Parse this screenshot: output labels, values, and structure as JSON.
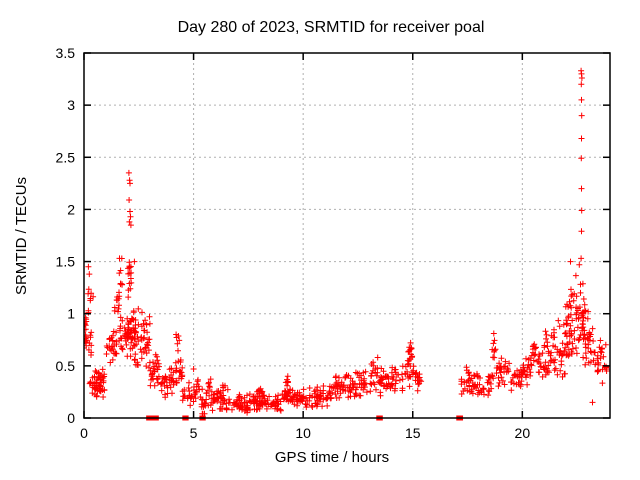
{
  "window": {
    "background": "#ffffff",
    "text_color": "#000000"
  },
  "chart_data": {
    "type": "scatter",
    "title": "Day 280 of 2023, SRMTID for receiver poal",
    "xlabel": "GPS time / hours",
    "ylabel": "SRMTID / TECUs",
    "xlim": [
      0,
      24
    ],
    "ylim": [
      0,
      3.5
    ],
    "xticks": [
      0,
      5,
      10,
      15,
      20
    ],
    "yticks": [
      0,
      0.5,
      1,
      1.5,
      2,
      2.5,
      3,
      3.5
    ],
    "grid": true,
    "grid_style": "dotted",
    "grid_color": "#b0b0b0",
    "axis_color": "#000000",
    "legend": "none",
    "marker": {
      "shape": "plus",
      "color": "#ff0000",
      "half_size": 3,
      "stroke_width": 1
    },
    "cluster_fields": [
      "x_min",
      "x_max",
      "y_min",
      "y_max",
      "count"
    ],
    "series": [
      {
        "name": "SRMTID",
        "seed": 20231280,
        "clusters": [
          [
            0.0,
            0.12,
            0.5,
            1.12,
            16
          ],
          [
            0.05,
            0.35,
            0.55,
            0.85,
            10
          ],
          [
            0.15,
            0.45,
            0.95,
            1.32,
            8
          ],
          [
            0.25,
            0.6,
            0.18,
            0.5,
            18
          ],
          [
            0.55,
            0.95,
            0.15,
            0.48,
            40
          ],
          [
            1.0,
            1.5,
            0.5,
            0.85,
            26
          ],
          [
            1.35,
            1.6,
            0.9,
            1.3,
            10
          ],
          [
            1.55,
            1.95,
            0.55,
            1.0,
            18
          ],
          [
            1.6,
            1.75,
            1.0,
            1.55,
            8
          ],
          [
            1.95,
            2.3,
            0.5,
            1.1,
            40
          ],
          [
            2.0,
            2.2,
            1.1,
            1.6,
            14
          ],
          [
            2.3,
            2.65,
            0.35,
            1.1,
            30
          ],
          [
            2.7,
            3.05,
            0.45,
            1.05,
            22
          ],
          [
            3.0,
            3.45,
            0.22,
            0.62,
            30
          ],
          [
            3.5,
            4.15,
            0.18,
            0.5,
            32
          ],
          [
            4.15,
            4.5,
            0.25,
            0.62,
            18
          ],
          [
            4.2,
            4.35,
            0.6,
            0.82,
            6
          ],
          [
            4.5,
            5.1,
            0.08,
            0.35,
            24
          ],
          [
            5.05,
            5.3,
            0.2,
            0.4,
            8
          ],
          [
            5.3,
            5.55,
            0.02,
            0.3,
            14
          ],
          [
            5.55,
            6.1,
            0.06,
            0.3,
            24
          ],
          [
            5.6,
            5.8,
            0.25,
            0.38,
            6
          ],
          [
            6.1,
            6.6,
            0.06,
            0.3,
            22
          ],
          [
            6.3,
            6.45,
            0.24,
            0.34,
            5
          ],
          [
            6.6,
            9.0,
            0.04,
            0.24,
            110
          ],
          [
            7.9,
            8.15,
            0.18,
            0.3,
            8
          ],
          [
            9.0,
            9.5,
            0.1,
            0.3,
            25
          ],
          [
            9.2,
            9.4,
            0.28,
            0.4,
            6
          ],
          [
            9.5,
            10.6,
            0.08,
            0.3,
            48
          ],
          [
            10.6,
            11.3,
            0.1,
            0.34,
            32
          ],
          [
            11.3,
            11.7,
            0.15,
            0.42,
            20
          ],
          [
            11.7,
            12.4,
            0.15,
            0.46,
            32
          ],
          [
            12.4,
            13.1,
            0.18,
            0.46,
            30
          ],
          [
            13.1,
            13.65,
            0.2,
            0.58,
            28
          ],
          [
            13.65,
            14.55,
            0.2,
            0.5,
            40
          ],
          [
            14.55,
            15.05,
            0.25,
            0.68,
            24
          ],
          [
            14.8,
            14.95,
            0.55,
            0.73,
            6
          ],
          [
            15.05,
            15.45,
            0.22,
            0.5,
            14
          ],
          [
            17.2,
            17.65,
            0.2,
            0.5,
            20
          ],
          [
            17.65,
            18.35,
            0.15,
            0.45,
            28
          ],
          [
            18.35,
            18.7,
            0.2,
            0.5,
            14
          ],
          [
            18.62,
            18.78,
            0.5,
            0.82,
            8
          ],
          [
            18.8,
            19.45,
            0.28,
            0.62,
            26
          ],
          [
            19.45,
            20.0,
            0.25,
            0.5,
            24
          ],
          [
            20.0,
            20.45,
            0.3,
            0.6,
            20
          ],
          [
            20.4,
            20.65,
            0.45,
            0.85,
            12
          ],
          [
            20.65,
            21.3,
            0.3,
            0.7,
            28
          ],
          [
            21.05,
            21.2,
            0.6,
            0.85,
            6
          ],
          [
            21.3,
            21.95,
            0.35,
            1.0,
            36
          ],
          [
            21.95,
            22.45,
            0.45,
            1.42,
            44
          ],
          [
            22.45,
            22.85,
            0.5,
            1.35,
            40
          ],
          [
            22.85,
            23.3,
            0.35,
            1.05,
            26
          ],
          [
            23.3,
            23.85,
            0.28,
            0.8,
            26
          ]
        ],
        "outliers": [
          [
            0.2,
            1.45
          ],
          [
            0.24,
            1.38
          ],
          [
            1.62,
            1.53
          ],
          [
            2.05,
            2.35
          ],
          [
            2.08,
            2.28
          ],
          [
            2.1,
            2.25
          ],
          [
            2.06,
            2.09
          ],
          [
            2.1,
            1.98
          ],
          [
            2.12,
            1.93
          ],
          [
            2.07,
            1.88
          ],
          [
            2.14,
            1.85
          ],
          [
            2.3,
            1.5
          ],
          [
            5.0,
            0.47
          ],
          [
            9.3,
            0.4
          ],
          [
            11.5,
            0.4
          ],
          [
            13.4,
            0.58
          ],
          [
            14.9,
            0.72
          ],
          [
            18.7,
            0.81
          ],
          [
            22.2,
            1.5
          ],
          [
            22.6,
            1.47
          ],
          [
            22.68,
            3.33
          ],
          [
            22.7,
            3.3
          ],
          [
            22.72,
            3.26
          ],
          [
            22.69,
            3.2
          ],
          [
            22.7,
            3.05
          ],
          [
            22.71,
            2.9
          ],
          [
            22.7,
            2.68
          ],
          [
            22.69,
            2.49
          ],
          [
            22.7,
            2.2
          ],
          [
            22.71,
            1.99
          ],
          [
            22.7,
            1.79
          ],
          [
            22.68,
            1.53
          ],
          [
            23.0,
            1.02
          ],
          [
            23.2,
            0.15
          ]
        ],
        "axis_marks_x": [
          2.95,
          3.02,
          3.08,
          3.14,
          3.22,
          3.3,
          4.6,
          4.66,
          5.38,
          5.44,
          13.45,
          13.52,
          17.1,
          17.18
        ]
      }
    ]
  }
}
